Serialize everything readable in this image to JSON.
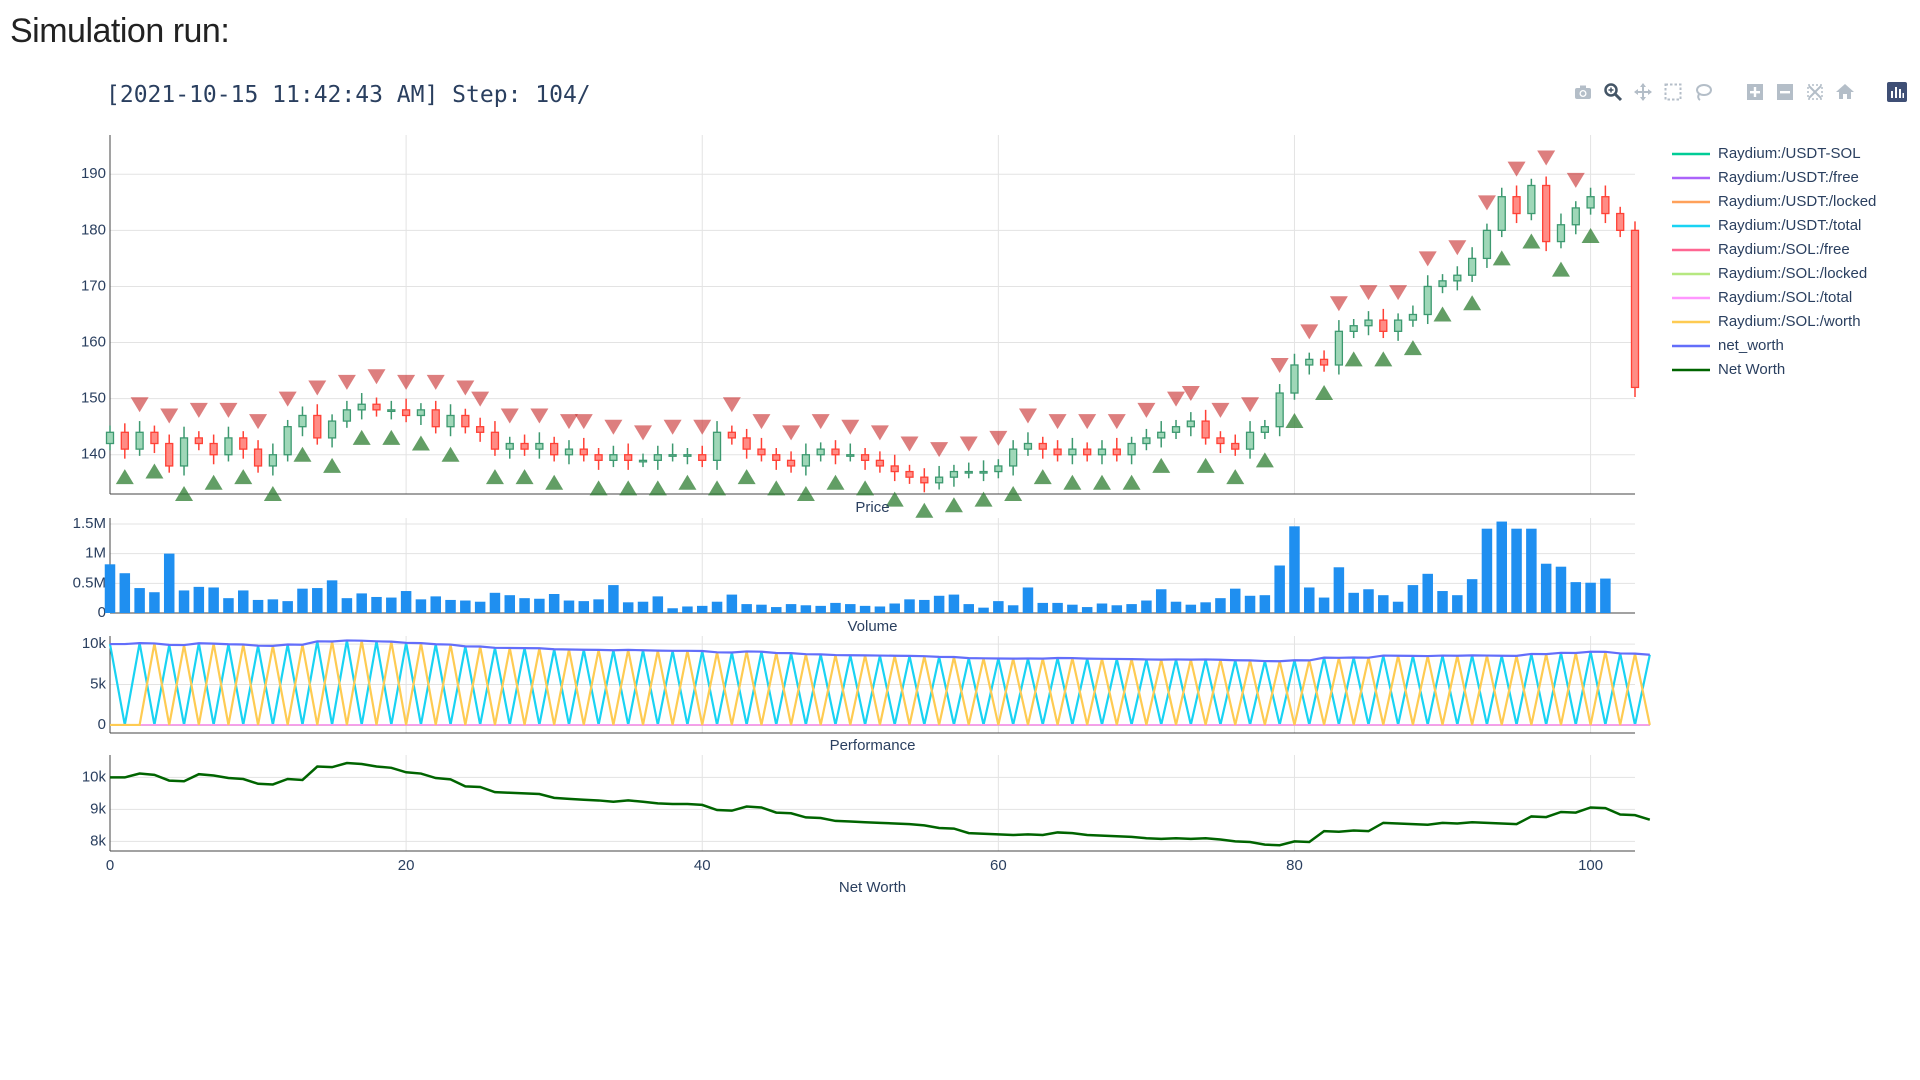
{
  "page": {
    "title": "Simulation run:"
  },
  "plot_title": "[2021-10-15 11:42:43 AM] Step: 104/",
  "modebar": [
    {
      "name": "camera-icon"
    },
    {
      "name": "zoom-icon"
    },
    {
      "name": "pan-icon"
    },
    {
      "name": "box-select-icon"
    },
    {
      "name": "lasso-select-icon"
    },
    {
      "name": "zoom-in-icon"
    },
    {
      "name": "zoom-out-icon"
    },
    {
      "name": "autoscale-icon"
    },
    {
      "name": "reset-axes-icon"
    },
    {
      "name": "plotly-logo-icon"
    }
  ],
  "chart_data": [
    {
      "type": "candlestick",
      "title": "Price",
      "xlim": [
        0,
        103
      ],
      "ylim": [
        133,
        197
      ],
      "yticks": [
        140,
        150,
        160,
        170,
        180,
        190
      ],
      "increasing_color": "#3D9970",
      "decreasing_color": "#FF4136",
      "close": [
        144,
        141,
        144,
        142,
        138,
        143,
        142,
        140,
        143,
        141,
        138,
        140,
        145,
        147,
        143,
        146,
        148,
        149,
        148,
        148,
        147,
        148,
        145,
        147,
        145,
        144,
        141,
        142,
        141,
        142,
        140,
        141,
        140,
        139,
        140,
        139,
        139,
        140,
        140,
        140,
        139,
        144,
        143,
        141,
        140,
        139,
        138,
        140,
        141,
        140,
        140,
        139,
        138,
        137,
        136,
        135,
        136,
        137,
        137,
        137,
        138,
        141,
        142,
        141,
        140,
        141,
        140,
        141,
        140,
        142,
        143,
        144,
        145,
        146,
        143,
        142,
        141,
        144,
        145,
        151,
        156,
        157,
        156,
        162,
        163,
        164,
        162,
        164,
        165,
        170,
        171,
        172,
        175,
        180,
        186,
        183,
        188,
        178,
        181,
        184,
        186,
        183,
        180,
        152
      ],
      "buy_markers": [
        1,
        3,
        5,
        7,
        9,
        11,
        13,
        15,
        17,
        19,
        21,
        23,
        26,
        28,
        30,
        33,
        35,
        37,
        39,
        41,
        43,
        45,
        47,
        49,
        51,
        53,
        55,
        57,
        59,
        61,
        63,
        65,
        67,
        69,
        71,
        74,
        76,
        78,
        80,
        82,
        84,
        86,
        88,
        90,
        92,
        94,
        96,
        98,
        100
      ],
      "sell_markers": [
        2,
        4,
        6,
        8,
        10,
        12,
        14,
        16,
        18,
        20,
        22,
        24,
        25,
        27,
        29,
        31,
        32,
        34,
        36,
        38,
        40,
        42,
        44,
        46,
        48,
        50,
        52,
        54,
        56,
        58,
        60,
        62,
        64,
        66,
        68,
        70,
        72,
        73,
        75,
        77,
        79,
        81,
        83,
        85,
        87,
        89,
        91,
        93,
        95,
        97,
        99
      ]
    },
    {
      "type": "bar",
      "title": "Volume",
      "ylim": [
        0,
        1600000
      ],
      "yticks": [
        0,
        500000,
        1000000,
        1500000
      ],
      "ytick_labels": [
        "0",
        "0.5M",
        "1M",
        "1.5M"
      ],
      "color": "#1f8ff0",
      "values": [
        820000,
        670000,
        420000,
        350000,
        1000000,
        380000,
        440000,
        430000,
        250000,
        380000,
        220000,
        230000,
        200000,
        410000,
        420000,
        550000,
        250000,
        330000,
        270000,
        260000,
        370000,
        230000,
        280000,
        220000,
        210000,
        190000,
        340000,
        300000,
        250000,
        240000,
        320000,
        210000,
        200000,
        230000,
        470000,
        180000,
        190000,
        280000,
        80000,
        110000,
        120000,
        190000,
        310000,
        150000,
        140000,
        100000,
        150000,
        130000,
        120000,
        170000,
        150000,
        120000,
        110000,
        160000,
        230000,
        220000,
        290000,
        310000,
        150000,
        90000,
        200000,
        130000,
        430000,
        170000,
        170000,
        140000,
        100000,
        160000,
        130000,
        150000,
        210000,
        400000,
        190000,
        140000,
        180000,
        250000,
        410000,
        290000,
        300000,
        800000,
        1460000,
        430000,
        260000,
        770000,
        340000,
        400000,
        300000,
        190000,
        470000,
        660000,
        370000,
        300000,
        570000,
        1420000,
        1540000,
        1420000,
        1420000,
        830000,
        780000,
        520000,
        510000,
        580000
      ]
    },
    {
      "type": "line",
      "title": "Performance",
      "ylim": [
        -1000,
        11000
      ],
      "yticks": [
        0,
        5000,
        10000
      ],
      "ytick_labels": [
        "0",
        "5k",
        "10k"
      ],
      "series": [
        {
          "name": "Raydium:/USDT-SOL",
          "color": "#00cc96",
          "values": []
        },
        {
          "name": "Raydium:/USDT:/free",
          "color": "#ab63fa",
          "values": []
        },
        {
          "name": "Raydium:/USDT:/locked",
          "color": "#ffa15a",
          "values": []
        },
        {
          "name": "Raydium:/USDT:/total",
          "color": "#19d3f3",
          "pattern": "total_usdt"
        },
        {
          "name": "Raydium:/SOL:/free",
          "color": "#ff6692",
          "values": []
        },
        {
          "name": "Raydium:/SOL:/locked",
          "color": "#b6e880",
          "values": []
        },
        {
          "name": "Raydium:/SOL:/total",
          "color": "#ff97ff",
          "values": []
        },
        {
          "name": "Raydium:/SOL:/worth",
          "color": "#fecb52",
          "pattern": "sol_worth"
        },
        {
          "name": "net_worth",
          "color": "#636efa",
          "pattern": "net_worth"
        }
      ]
    },
    {
      "type": "line",
      "title": "Net Worth",
      "xlabel": "Net Worth",
      "ylim": [
        7700,
        10700
      ],
      "yticks": [
        8000,
        9000,
        10000
      ],
      "ytick_labels": [
        "8k",
        "9k",
        "10k"
      ],
      "xticks": [
        0,
        20,
        40,
        60,
        80,
        100
      ],
      "series": [
        {
          "name": "Net Worth",
          "color": "#006400",
          "values": [
            10000,
            10000,
            10120,
            10080,
            9900,
            9880,
            10100,
            10060,
            9980,
            9950,
            9800,
            9780,
            9950,
            9920,
            10340,
            10320,
            10450,
            10420,
            10340,
            10300,
            10160,
            10120,
            9980,
            9940,
            9720,
            9700,
            9540,
            9520,
            9500,
            9480,
            9360,
            9330,
            9300,
            9280,
            9240,
            9280,
            9240,
            9190,
            9170,
            9170,
            9140,
            8980,
            8960,
            9090,
            9060,
            8900,
            8880,
            8750,
            8730,
            8640,
            8620,
            8600,
            8580,
            8560,
            8540,
            8500,
            8420,
            8400,
            8260,
            8240,
            8220,
            8200,
            8220,
            8200,
            8280,
            8260,
            8200,
            8180,
            8160,
            8140,
            8100,
            8080,
            8100,
            8080,
            8100,
            8060,
            8000,
            7980,
            7900,
            7880,
            8000,
            7980,
            8320,
            8300,
            8340,
            8320,
            8580,
            8560,
            8540,
            8520,
            8580,
            8560,
            8600,
            8580,
            8560,
            8540,
            8780,
            8760,
            8920,
            8900,
            9060,
            9040,
            8840,
            8820,
            8680
          ]
        }
      ]
    }
  ],
  "legend": [
    {
      "label": "Raydium:/USDT-SOL",
      "color": "#00cc96"
    },
    {
      "label": "Raydium:/USDT:/free",
      "color": "#ab63fa"
    },
    {
      "label": "Raydium:/USDT:/locked",
      "color": "#ffa15a"
    },
    {
      "label": "Raydium:/USDT:/total",
      "color": "#19d3f3"
    },
    {
      "label": "Raydium:/SOL:/free",
      "color": "#ff6692"
    },
    {
      "label": "Raydium:/SOL:/locked",
      "color": "#b6e880"
    },
    {
      "label": "Raydium:/SOL:/total",
      "color": "#ff97ff"
    },
    {
      "label": "Raydium:/SOL:/worth",
      "color": "#fecb52"
    },
    {
      "label": "net_worth",
      "color": "#636efa"
    },
    {
      "label": "Net Worth",
      "color": "#006400"
    }
  ]
}
